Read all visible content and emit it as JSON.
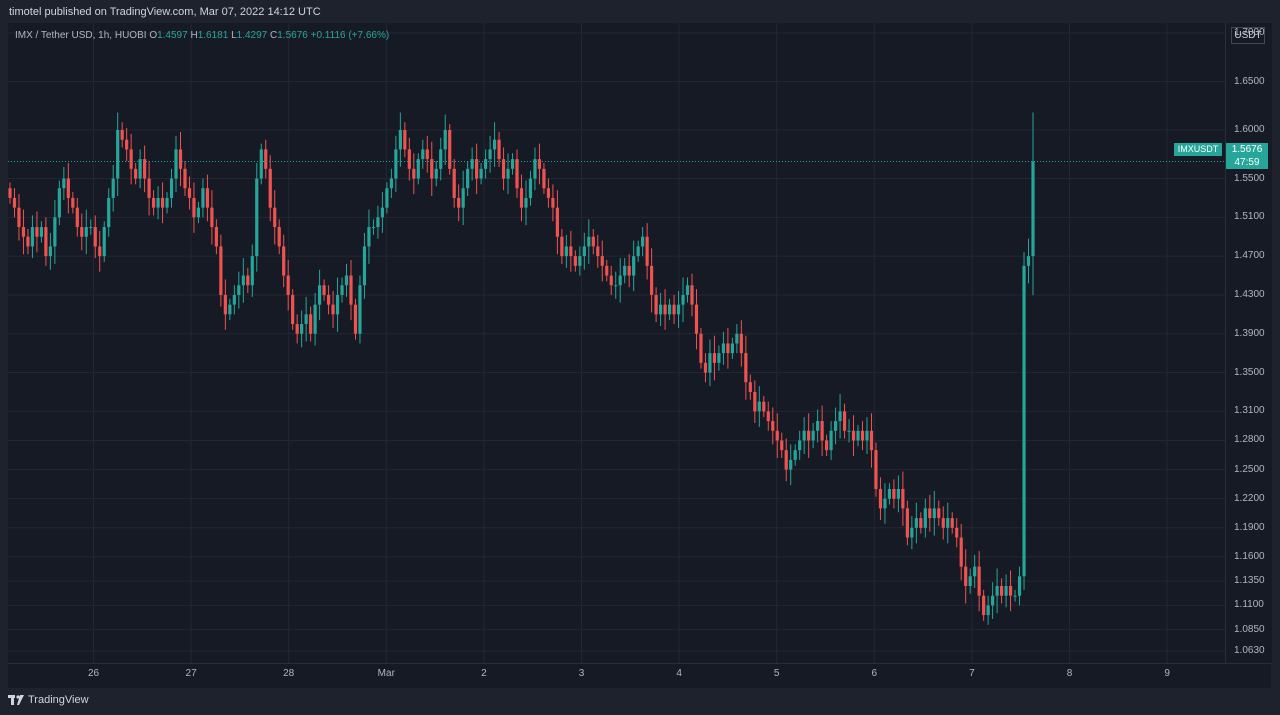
{
  "header": {
    "publish_line": "timotel published on TradingView.com, Mar 07, 2022 14:12 UTC"
  },
  "legend": {
    "symbol": "IMX / Tether USD, 1h, HUOBI",
    "o_label": "O",
    "o": "1.4597",
    "h_label": "H",
    "h": "1.6181",
    "l_label": "L",
    "l": "1.4297",
    "c_label": "C",
    "c": "1.5676",
    "change": "+0.1116 (+7.66%)"
  },
  "price_tags": {
    "symbol": "IMXUSDT",
    "price": "1.5676",
    "countdown": "47:59"
  },
  "footer": {
    "brand": "TradingView"
  },
  "colors": {
    "up": "#26a69a",
    "down": "#ef5350",
    "background": "#161a25",
    "grid": "#232733"
  },
  "chart_data": {
    "type": "candlestick",
    "y_unit": "USDT",
    "ylim": [
      1.063,
      1.7
    ],
    "y_ticks": [
      "1.7000",
      "1.6500",
      "1.6000",
      "1.5500",
      "1.5100",
      "1.4700",
      "1.4300",
      "1.3900",
      "1.3500",
      "1.3100",
      "1.2800",
      "1.2500",
      "1.2200",
      "1.1900",
      "1.1600",
      "1.1350",
      "1.1100",
      "1.0850",
      "1.0630"
    ],
    "x_ticks": [
      "26",
      "27",
      "28",
      "Mar",
      "2",
      "3",
      "4",
      "5",
      "6",
      "7",
      "8",
      "9"
    ],
    "grid": true,
    "last_price": 1.5676,
    "closes": [
      1.53,
      1.52,
      1.5,
      1.49,
      1.48,
      1.5,
      1.49,
      1.5,
      1.47,
      1.48,
      1.51,
      1.54,
      1.55,
      1.53,
      1.52,
      1.5,
      1.49,
      1.5,
      1.5,
      1.48,
      1.47,
      1.5,
      1.53,
      1.55,
      1.6,
      1.59,
      1.58,
      1.56,
      1.55,
      1.57,
      1.55,
      1.53,
      1.52,
      1.53,
      1.52,
      1.53,
      1.55,
      1.58,
      1.56,
      1.54,
      1.53,
      1.51,
      1.52,
      1.54,
      1.52,
      1.5,
      1.48,
      1.43,
      1.41,
      1.42,
      1.43,
      1.44,
      1.45,
      1.44,
      1.47,
      1.55,
      1.58,
      1.56,
      1.52,
      1.5,
      1.48,
      1.45,
      1.43,
      1.4,
      1.39,
      1.4,
      1.41,
      1.39,
      1.42,
      1.44,
      1.43,
      1.42,
      1.41,
      1.43,
      1.44,
      1.45,
      1.42,
      1.39,
      1.44,
      1.48,
      1.5,
      1.5,
      1.51,
      1.52,
      1.54,
      1.55,
      1.58,
      1.6,
      1.58,
      1.56,
      1.55,
      1.57,
      1.58,
      1.57,
      1.55,
      1.56,
      1.58,
      1.6,
      1.56,
      1.53,
      1.52,
      1.54,
      1.56,
      1.57,
      1.55,
      1.56,
      1.57,
      1.58,
      1.59,
      1.57,
      1.55,
      1.56,
      1.57,
      1.54,
      1.52,
      1.53,
      1.55,
      1.57,
      1.56,
      1.54,
      1.53,
      1.52,
      1.49,
      1.47,
      1.48,
      1.47,
      1.46,
      1.47,
      1.48,
      1.49,
      1.48,
      1.47,
      1.46,
      1.45,
      1.44,
      1.44,
      1.45,
      1.46,
      1.45,
      1.47,
      1.48,
      1.49,
      1.46,
      1.43,
      1.41,
      1.42,
      1.41,
      1.42,
      1.41,
      1.42,
      1.43,
      1.44,
      1.42,
      1.39,
      1.36,
      1.35,
      1.37,
      1.36,
      1.37,
      1.38,
      1.37,
      1.38,
      1.39,
      1.37,
      1.34,
      1.33,
      1.31,
      1.32,
      1.31,
      1.3,
      1.29,
      1.28,
      1.27,
      1.25,
      1.26,
      1.27,
      1.28,
      1.29,
      1.28,
      1.29,
      1.3,
      1.28,
      1.27,
      1.29,
      1.3,
      1.31,
      1.29,
      1.29,
      1.28,
      1.29,
      1.28,
      1.29,
      1.27,
      1.23,
      1.21,
      1.22,
      1.23,
      1.22,
      1.23,
      1.21,
      1.18,
      1.19,
      1.2,
      1.19,
      1.21,
      1.2,
      1.21,
      1.2,
      1.19,
      1.2,
      1.19,
      1.18,
      1.15,
      1.13,
      1.14,
      1.15,
      1.12,
      1.1,
      1.11,
      1.12,
      1.13,
      1.12,
      1.13,
      1.12,
      1.12,
      1.14,
      1.46,
      1.47,
      1.5676
    ]
  }
}
